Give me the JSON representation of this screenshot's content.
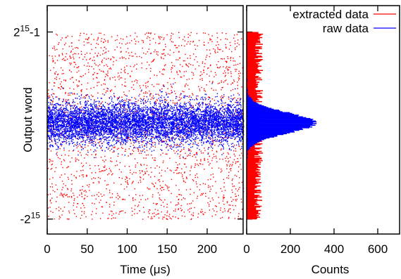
{
  "chart_data": [
    {
      "type": "scatter",
      "xlabel": "Time (μs)",
      "ylabel": "Output word",
      "xlim": [
        0,
        245
      ],
      "ylim": [
        -38000,
        42000
      ],
      "x_ticks": [
        0,
        50,
        100,
        150,
        200
      ],
      "y_ticks": [
        {
          "value": 32767,
          "base": "2",
          "exp": "15",
          "suffix": "-1",
          "prefix": ""
        },
        {
          "value": -32768,
          "base": "2",
          "exp": "15",
          "suffix": "",
          "prefix": "-"
        }
      ],
      "series": [
        {
          "name": "extracted data",
          "color": "#ff0000",
          "distribution": "uniform",
          "range": [
            -32768,
            32767
          ],
          "count": 2200
        },
        {
          "name": "raw data",
          "color": "#0000ff",
          "distribution": "gaussian",
          "mean": 1100,
          "std": 3600,
          "count": 7000
        }
      ]
    },
    {
      "type": "histogram",
      "orientation": "horizontal",
      "xlabel": "Counts",
      "xlim": [
        0,
        700
      ],
      "ylim": [
        -38000,
        42000
      ],
      "x_ticks": [
        0,
        200,
        400,
        600
      ],
      "series": [
        {
          "name": "extracted data",
          "color": "#ff0000",
          "shape": "flat",
          "mean_count": 55,
          "range": [
            -32768,
            32767
          ]
        },
        {
          "name": "raw data",
          "color": "#0000ff",
          "shape": "gaussian",
          "peak_count": 310,
          "center": 1100,
          "std": 3600
        }
      ]
    }
  ],
  "legend": {
    "position": "top-right",
    "items": [
      {
        "label": "extracted data",
        "color": "#ff0000"
      },
      {
        "label": "raw data",
        "color": "#0000ff"
      }
    ]
  }
}
